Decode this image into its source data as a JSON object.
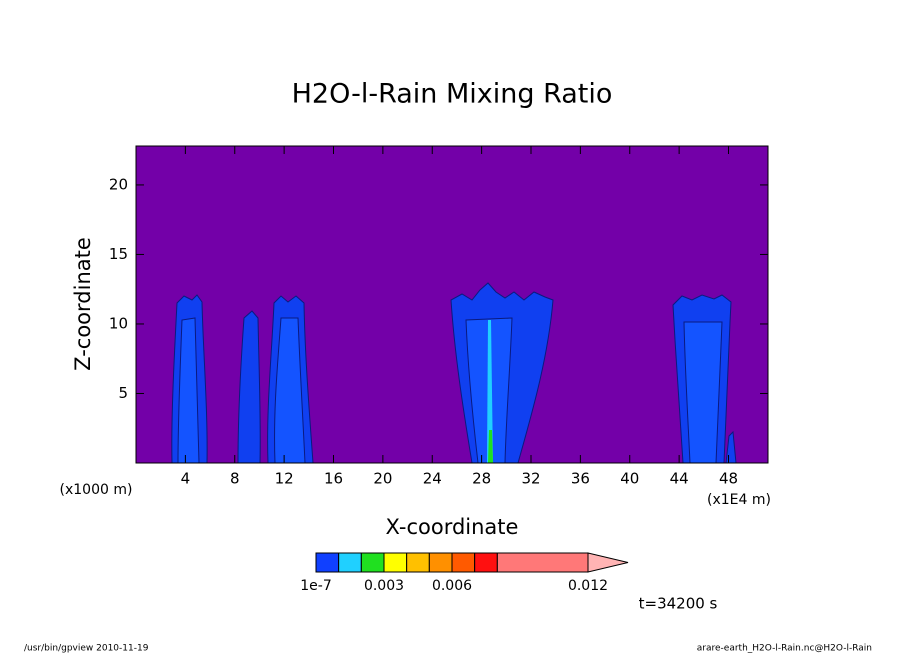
{
  "chart_data": {
    "type": "contour",
    "title": "H2O-l-Rain Mixing Ratio",
    "x_label": "X-coordinate",
    "y_label": "Z-coordinate",
    "x_unit_left": "(x1000 m)",
    "x_unit_right": "(x1E4 m)",
    "time_label": "t=34200 s",
    "footer_left": "/usr/bin/gpview  2010-11-19",
    "footer_right": "arare-earth_H2O-l-Rain.nc@H2O-l-Rain",
    "xlim": [
      0,
      51.2
    ],
    "ylim": [
      0,
      22.8
    ],
    "xticks": [
      4,
      8,
      12,
      16,
      20,
      24,
      28,
      32,
      36,
      40,
      44,
      48
    ],
    "yticks": [
      5,
      10,
      15,
      20
    ],
    "background_color": "#7300a8",
    "colorbar": {
      "levels": [
        1e-07,
        0.001,
        0.002,
        0.003,
        0.004,
        0.005,
        0.006,
        0.007,
        0.008,
        0.012
      ],
      "colors": [
        "#1040ff",
        "#20d0ff",
        "#20e020",
        "#ffff00",
        "#ffc000",
        "#ff9000",
        "#ff5a00",
        "#ff1010",
        "#ff7878"
      ],
      "extend_color": "#ffb4b4",
      "ticks": [
        {
          "value": 1e-07,
          "label": "1e-7"
        },
        0.003,
        0.006,
        0.012
      ]
    }
  }
}
